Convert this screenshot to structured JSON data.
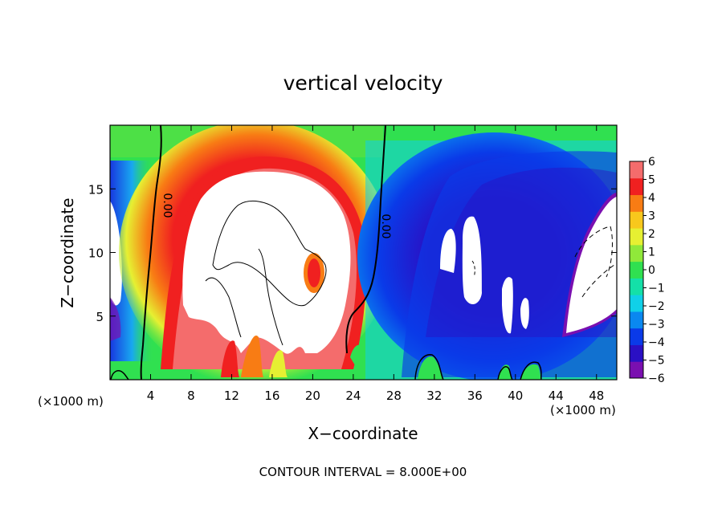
{
  "chart_data": {
    "type": "heatmap",
    "title": "vertical velocity",
    "xlabel": "X−coordinate",
    "ylabel": "Z−coordinate",
    "x_unit_left": "(×1000 m)",
    "x_unit_right": "(×1000 m)",
    "xlim": [
      0,
      50
    ],
    "ylim": [
      0,
      20
    ],
    "x_ticks": [
      4,
      8,
      12,
      16,
      20,
      24,
      28,
      32,
      36,
      40,
      44,
      48
    ],
    "x_tick_labels": [
      "4",
      "8",
      "12",
      "16",
      "20",
      "24",
      "28",
      "32",
      "36",
      "40",
      "44",
      "48"
    ],
    "y_ticks": [
      5,
      10,
      15
    ],
    "y_tick_labels": [
      "5",
      "10",
      "15"
    ],
    "colorbar": {
      "range": [
        -6,
        6
      ],
      "tick_values": [
        6,
        5,
        4,
        3,
        2,
        1,
        0,
        -1,
        -2,
        -3,
        -4,
        -5,
        -6
      ],
      "tick_labels": [
        "6",
        "5",
        "4",
        "3",
        "2",
        "1",
        "0",
        "−1",
        "−2",
        "−3",
        "−4",
        "−5",
        "−6"
      ],
      "overflow_color": "#ffffff",
      "colors": [
        "#7a0fb0",
        "#2a10c4",
        "#0a3ae8",
        "#0a88f0",
        "#10d0e8",
        "#14e0a8",
        "#30e050",
        "#90e83a",
        "#e6f032",
        "#f8c81c",
        "#f87c14",
        "#f02020",
        "#f46c6c"
      ]
    },
    "contour_labels": [
      "0.00",
      "0.00"
    ],
    "contour_interval_label": "CONTOUR INTERVAL = 8.000E+00"
  }
}
